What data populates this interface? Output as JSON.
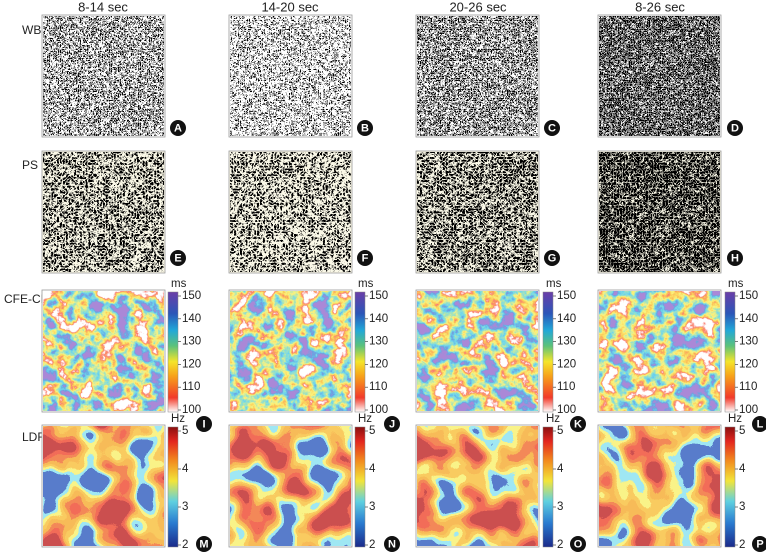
{
  "column_headers": [
    "8-14 sec",
    "14-20 sec",
    "20-26 sec",
    "8-26 sec"
  ],
  "rows": [
    {
      "label": "WB",
      "panels": [
        "A",
        "B",
        "C",
        "D"
      ]
    },
    {
      "label": "PS",
      "panels": [
        "E",
        "F",
        "G",
        "H"
      ]
    },
    {
      "label": "CFE-CL",
      "panels": [
        "I",
        "J",
        "K",
        "L"
      ],
      "colorbar": {
        "unit": "ms",
        "ticks": [
          150,
          140,
          130,
          120,
          110,
          100
        ]
      }
    },
    {
      "label": "LDF",
      "panels": [
        "M",
        "N",
        "O",
        "P"
      ],
      "colorbar": {
        "unit": "Hz",
        "ticks": [
          5,
          4,
          3,
          2
        ]
      }
    }
  ]
}
